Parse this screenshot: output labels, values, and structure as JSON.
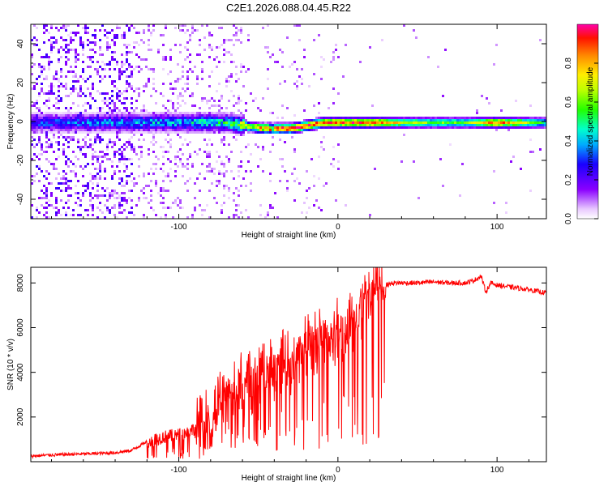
{
  "title": "C2E1.2026.088.04.45.R22",
  "chart_data": [
    {
      "type": "heatmap",
      "name": "spectrogram",
      "xlabel": "Height of straight line (km)",
      "ylabel": "Frequency (Hz)",
      "xlim": [
        -193,
        131
      ],
      "ylim": [
        -50,
        50
      ],
      "xticks": [
        -100,
        0,
        100
      ],
      "yticks": [
        -40,
        -20,
        0,
        20,
        40
      ],
      "colorbar": {
        "label": "Normalized spectral amplitude",
        "range": [
          0,
          1
        ],
        "ticks": [
          0,
          0.2,
          0.4,
          0.6,
          0.8
        ]
      },
      "ridge": {
        "description_points_x": [
          -180,
          -140,
          -100,
          -70,
          -50,
          -30,
          -10,
          0,
          20,
          40,
          60,
          80,
          100,
          130
        ],
        "center_frequency": [
          0,
          0,
          0,
          0,
          -3,
          -3,
          0,
          0,
          0,
          0,
          0,
          0,
          0,
          0
        ],
        "peak_amplitude": [
          0.35,
          0.4,
          0.45,
          0.55,
          0.95,
          0.95,
          0.95,
          0.9,
          0.95,
          0.7,
          0.6,
          0.6,
          0.9,
          0.5
        ]
      }
    },
    {
      "type": "line",
      "name": "snr",
      "xlabel": "Height of straight line (km)",
      "ylabel": "SNR (10 * v/v)",
      "xlim": [
        -193,
        131
      ],
      "ylim": [
        0,
        8700
      ],
      "xticks": [
        -100,
        0,
        100
      ],
      "yticks": [
        2000,
        4000,
        6000,
        8000
      ],
      "color": "#ff0000",
      "series": [
        {
          "name": "SNR",
          "x": [
            -193,
            -180,
            -160,
            -140,
            -130,
            -120,
            -110,
            -100,
            -95,
            -90,
            -85,
            -80,
            -75,
            -70,
            -65,
            -60,
            -55,
            -50,
            -45,
            -40,
            -35,
            -30,
            -25,
            -20,
            -15,
            -10,
            -5,
            0,
            5,
            10,
            15,
            20,
            25,
            30,
            35,
            40,
            50,
            60,
            70,
            80,
            85,
            90,
            93,
            96,
            100,
            110,
            120,
            131
          ],
          "y": [
            250,
            300,
            350,
            400,
            500,
            900,
            1100,
            1200,
            1300,
            1500,
            1600,
            2000,
            2500,
            3000,
            3200,
            3600,
            3500,
            3800,
            4000,
            4200,
            4600,
            4300,
            4900,
            5200,
            5300,
            5600,
            5400,
            6000,
            5900,
            6300,
            6800,
            7300,
            7700,
            7900,
            8000,
            8000,
            8000,
            8050,
            8000,
            8000,
            8100,
            8300,
            7600,
            8000,
            7900,
            7800,
            7700,
            7550
          ]
        }
      ]
    }
  ]
}
